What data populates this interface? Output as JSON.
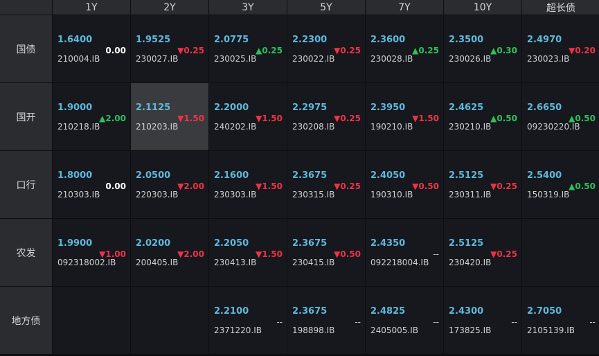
{
  "columns": [
    "1Y",
    "2Y",
    "3Y",
    "5Y",
    "7Y",
    "10Y",
    "超长债"
  ],
  "rows": [
    {
      "label": "国债",
      "cells": [
        {
          "rate": "1.6400",
          "code": "210004.IB",
          "change": "0.00",
          "dir": "flat"
        },
        {
          "rate": "1.9525",
          "code": "230027.IB",
          "change": "▼0.25",
          "dir": "down"
        },
        {
          "rate": "2.0775",
          "code": "230025.IB",
          "change": "▲0.25",
          "dir": "up"
        },
        {
          "rate": "2.2300",
          "code": "230022.IB",
          "change": "▼0.25",
          "dir": "down"
        },
        {
          "rate": "2.3600",
          "code": "230028.IB",
          "change": "▲0.25",
          "dir": "up"
        },
        {
          "rate": "2.3500",
          "code": "230026.IB",
          "change": "▲0.30",
          "dir": "up"
        },
        {
          "rate": "2.4970",
          "code": "230023.IB",
          "change": "▼0.20",
          "dir": "down"
        }
      ]
    },
    {
      "label": "国开",
      "cells": [
        {
          "rate": "1.9000",
          "code": "210218.IB",
          "change": "▲2.00",
          "dir": "up"
        },
        {
          "rate": "2.1125",
          "code": "210203.IB",
          "change": "▼1.50",
          "dir": "down",
          "selected": true
        },
        {
          "rate": "2.2000",
          "code": "240202.IB",
          "change": "▼1.50",
          "dir": "down"
        },
        {
          "rate": "2.2975",
          "code": "230208.IB",
          "change": "▼0.25",
          "dir": "down"
        },
        {
          "rate": "2.3950",
          "code": "190210.IB",
          "change": "▼1.50",
          "dir": "down"
        },
        {
          "rate": "2.4625",
          "code": "230210.IB",
          "change": "▲0.50",
          "dir": "up"
        },
        {
          "rate": "2.6650",
          "code": "09230220.IB",
          "change": "▲0.50",
          "dir": "up"
        }
      ]
    },
    {
      "label": "口行",
      "cells": [
        {
          "rate": "1.8000",
          "code": "210303.IB",
          "change": "0.00",
          "dir": "flat"
        },
        {
          "rate": "2.0500",
          "code": "220303.IB",
          "change": "▼2.00",
          "dir": "down"
        },
        {
          "rate": "2.1600",
          "code": "230303.IB",
          "change": "▼1.50",
          "dir": "down"
        },
        {
          "rate": "2.3675",
          "code": "230315.IB",
          "change": "▼0.25",
          "dir": "down"
        },
        {
          "rate": "2.4050",
          "code": "190310.IB",
          "change": "▼0.50",
          "dir": "down"
        },
        {
          "rate": "2.5125",
          "code": "230311.IB",
          "change": "▼0.25",
          "dir": "down"
        },
        {
          "rate": "2.5400",
          "code": "150319.IB",
          "change": "▲0.50",
          "dir": "up"
        }
      ]
    },
    {
      "label": "农发",
      "cells": [
        {
          "rate": "1.9900",
          "code": "092318002.IB",
          "change": "▼1.00",
          "dir": "down"
        },
        {
          "rate": "2.0200",
          "code": "200405.IB",
          "change": "▼2.00",
          "dir": "down"
        },
        {
          "rate": "2.2050",
          "code": "230413.IB",
          "change": "▼1.50",
          "dir": "down"
        },
        {
          "rate": "2.3675",
          "code": "230415.IB",
          "change": "▼0.50",
          "dir": "down"
        },
        {
          "rate": "2.4350",
          "code": "092218004.IB",
          "change": "--",
          "dir": "none"
        },
        {
          "rate": "2.5125",
          "code": "230420.IB",
          "change": "▼0.25",
          "dir": "down"
        },
        null
      ]
    },
    {
      "label": "地方债",
      "cells": [
        null,
        null,
        {
          "rate": "2.2100",
          "code": "2371220.IB",
          "change": "--",
          "dir": "none"
        },
        {
          "rate": "2.3675",
          "code": "198898.IB",
          "change": "--",
          "dir": "none"
        },
        {
          "rate": "2.4825",
          "code": "2405005.IB",
          "change": "--",
          "dir": "none"
        },
        {
          "rate": "2.4300",
          "code": "173825.IB",
          "change": "--",
          "dir": "none"
        },
        {
          "rate": "2.7050",
          "code": "2105139.IB",
          "change": "--",
          "dir": "none"
        }
      ]
    }
  ],
  "colors": {
    "rate": "#5fb8dc",
    "up": "#2fbf5a",
    "down": "#ee3347",
    "background": "#16181d",
    "header": "#2b2c30"
  }
}
